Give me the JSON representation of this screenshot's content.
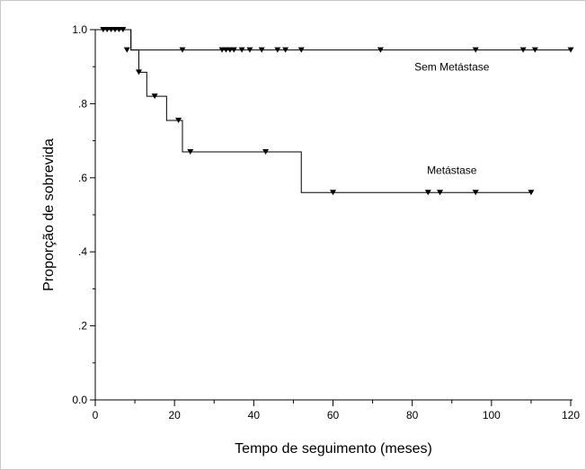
{
  "chart_data": {
    "type": "line",
    "title": "",
    "xlabel": "Tempo de seguimento (meses)",
    "ylabel": "Proporção de sobrevida",
    "xlim": [
      0,
      120
    ],
    "ylim": [
      0,
      1
    ],
    "x_ticks": [
      {
        "value": 0,
        "label": "0"
      },
      {
        "value": 20,
        "label": "20"
      },
      {
        "value": 40,
        "label": "40"
      },
      {
        "value": 60,
        "label": "60"
      },
      {
        "value": 80,
        "label": "80"
      },
      {
        "value": 100,
        "label": "100"
      },
      {
        "value": 120,
        "label": "120"
      }
    ],
    "y_ticks": [
      {
        "value": 0,
        "label": "0.0"
      },
      {
        "value": 0.2,
        "label": ".2"
      },
      {
        "value": 0.4,
        "label": ".4"
      },
      {
        "value": 0.6,
        "label": ".6"
      },
      {
        "value": 0.8,
        "label": ".8"
      },
      {
        "value": 1,
        "label": "1.0"
      }
    ],
    "grid": false,
    "legend": "none",
    "series": [
      {
        "name": "Sem Metástase",
        "color": "#000000",
        "label_at": {
          "x": 90,
          "y": 0.89
        },
        "steps": [
          [
            0,
            1.0
          ],
          [
            9,
            0.945
          ],
          [
            120,
            0.945
          ]
        ],
        "censored": [
          [
            2,
            1.0
          ],
          [
            3,
            1.0
          ],
          [
            4,
            1.0
          ],
          [
            5,
            1.0
          ],
          [
            6,
            1.0
          ],
          [
            7,
            1.0
          ],
          [
            8,
            0.945
          ],
          [
            22,
            0.945
          ],
          [
            32,
            0.945
          ],
          [
            33,
            0.945
          ],
          [
            34,
            0.945
          ],
          [
            35,
            0.945
          ],
          [
            37,
            0.945
          ],
          [
            39,
            0.945
          ],
          [
            42,
            0.945
          ],
          [
            46,
            0.945
          ],
          [
            48,
            0.945
          ],
          [
            52,
            0.945
          ],
          [
            72,
            0.945
          ],
          [
            96,
            0.945
          ],
          [
            108,
            0.945
          ],
          [
            111,
            0.945
          ],
          [
            120,
            0.945
          ]
        ]
      },
      {
        "name": "Metástase",
        "color": "#000000",
        "label_at": {
          "x": 90,
          "y": 0.61
        },
        "steps": [
          [
            0,
            1.0
          ],
          [
            9,
            0.945
          ],
          [
            11,
            0.885
          ],
          [
            13,
            0.82
          ],
          [
            18,
            0.755
          ],
          [
            22,
            0.67
          ],
          [
            52,
            0.56
          ],
          [
            110,
            0.56
          ]
        ],
        "censored": [
          [
            11,
            0.885
          ],
          [
            15,
            0.82
          ],
          [
            21,
            0.755
          ],
          [
            24,
            0.67
          ],
          [
            43,
            0.67
          ],
          [
            60,
            0.56
          ],
          [
            84,
            0.56
          ],
          [
            87,
            0.56
          ],
          [
            96,
            0.56
          ],
          [
            110,
            0.56
          ]
        ]
      }
    ]
  }
}
